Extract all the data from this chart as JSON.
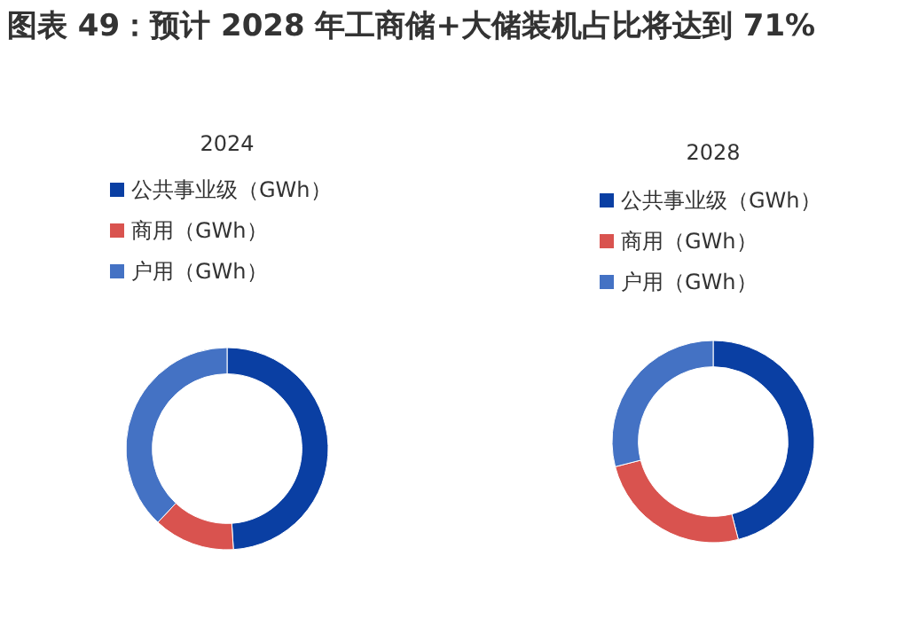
{
  "chart_data": [
    {
      "type": "donut",
      "title": "图表 49：预计 2028 年工商储+大储装机占比将达到 71%",
      "subtitle": "2024",
      "categories": [
        "公共事业级（GWh）",
        "商用（GWh）",
        "户用（GWh）"
      ],
      "values": [
        49,
        13,
        38
      ],
      "colors": [
        "#0a3fa3",
        "#d9534f",
        "#4472c4"
      ],
      "legend": "top"
    },
    {
      "type": "donut",
      "title": "2028",
      "categories": [
        "公共事业级（GWh）",
        "商用（GWh）",
        "户用（GWh）"
      ],
      "values": [
        46,
        25,
        29
      ],
      "colors": [
        "#0a3fa3",
        "#d9534f",
        "#4472c4"
      ],
      "legend": "top"
    }
  ]
}
